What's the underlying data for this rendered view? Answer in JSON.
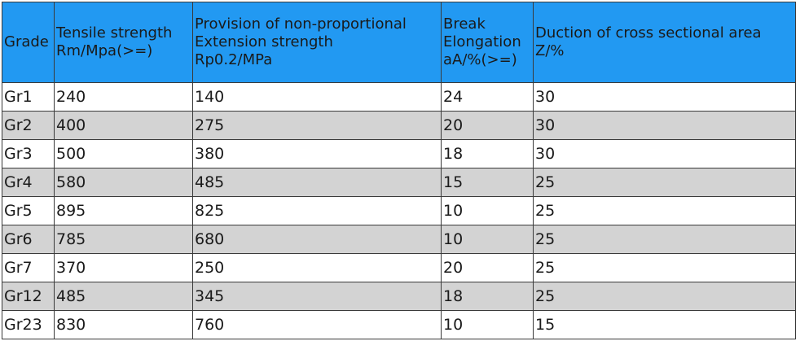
{
  "table": {
    "headers": [
      {
        "lines": [
          "Grade"
        ]
      },
      {
        "lines": [
          "Tensile strength",
          "Rm/Mpa(>=)"
        ]
      },
      {
        "lines": [
          "Provision of non-proportional",
          "Extension strength",
          "Rp0.2/MPa"
        ]
      },
      {
        "lines": [
          "Break",
          "Elongation",
          "aA/%(>=)"
        ]
      },
      {
        "lines": [
          "Duction of cross sectional area",
          "Z/%"
        ]
      }
    ],
    "rows": [
      [
        "Gr1",
        "240",
        "140",
        "24",
        "30"
      ],
      [
        "Gr2",
        "400",
        "275",
        "20",
        "30"
      ],
      [
        "Gr3",
        "500",
        "380",
        "18",
        "30"
      ],
      [
        "Gr4",
        "580",
        "485",
        "15",
        "25"
      ],
      [
        "Gr5",
        "895",
        "825",
        "10",
        "25"
      ],
      [
        "Gr6",
        "785",
        "680",
        "10",
        "25"
      ],
      [
        "Gr7",
        "370",
        "250",
        "20",
        "25"
      ],
      [
        "Gr12",
        "485",
        "345",
        "18",
        "25"
      ],
      [
        "Gr23",
        "830",
        "760",
        "10",
        "15"
      ]
    ],
    "colors": {
      "header_bg": "#2299f2",
      "shaded_row_bg": "#d3d3d3",
      "plain_row_bg": "#ffffff",
      "border": "#3a3a3a"
    }
  }
}
